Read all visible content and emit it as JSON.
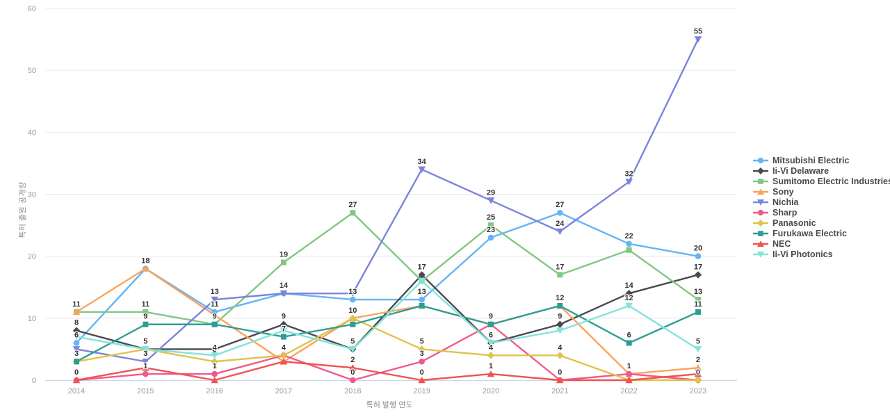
{
  "chart_data": {
    "type": "line",
    "title": "",
    "xlabel": "특허 발행 연도",
    "ylabel": "특허 출원 공개량",
    "x": [
      2014,
      2015,
      2016,
      2017,
      2018,
      2019,
      2020,
      2021,
      2022,
      2023
    ],
    "ylim": [
      0,
      60
    ],
    "yticks": [
      0,
      10,
      20,
      30,
      40,
      50,
      60
    ],
    "grid": true,
    "legend_position": "right",
    "axis_color": "#999999",
    "grid_color": "#e8e8e8",
    "baseline_color": "#ccd6eb",
    "label_color": "#333333",
    "series": [
      {
        "name": "Mitsubishi Electric",
        "color": "#64B5F6",
        "marker": "circle",
        "values": [
          6,
          18,
          11,
          14,
          13,
          13,
          23,
          27,
          22,
          20
        ],
        "labels": [
          "6",
          null,
          "11",
          null,
          "13",
          "13",
          "23",
          "27",
          "22",
          "20"
        ]
      },
      {
        "name": "Ii-Vi Delaware",
        "color": "#4A4A52",
        "marker": "diamond",
        "values": [
          8,
          5,
          5,
          9,
          5,
          17,
          6,
          9,
          14,
          17
        ],
        "labels": [
          "8",
          null,
          null,
          "9",
          "5",
          "17",
          "6",
          "9",
          "14",
          "17"
        ]
      },
      {
        "name": "Sumitomo Electric Industries",
        "color": "#81C784",
        "marker": "square",
        "values": [
          11,
          11,
          9,
          19,
          27,
          16,
          25,
          17,
          21,
          13
        ],
        "labels": [
          null,
          "11",
          null,
          "19",
          "27",
          null,
          "25",
          "17",
          null,
          "13"
        ]
      },
      {
        "name": "Sony",
        "color": "#FBA35B",
        "marker": "triangle-up",
        "values": [
          11,
          18,
          null,
          3,
          10,
          12,
          9,
          12,
          1,
          2
        ],
        "labels": [
          "11",
          "18",
          null,
          null,
          null,
          null,
          null,
          null,
          null,
          "2"
        ]
      },
      {
        "name": "Nichia",
        "color": "#7C83DC",
        "marker": "triangle-down",
        "values": [
          5,
          3,
          13,
          14,
          14,
          34,
          29,
          24,
          32,
          55
        ],
        "labels": [
          null,
          "3",
          "13",
          "14",
          null,
          "34",
          "29",
          "24",
          "32",
          "55"
        ]
      },
      {
        "name": "Sharp",
        "color": "#F0598E",
        "marker": "circle",
        "values": [
          0,
          1,
          1,
          4,
          0,
          3,
          9,
          0,
          1,
          0
        ],
        "labels": [
          "0",
          "1",
          "1",
          null,
          "0",
          "3",
          null,
          "0",
          "1",
          "0"
        ]
      },
      {
        "name": "Panasonic",
        "color": "#E0C34A",
        "marker": "diamond",
        "values": [
          3,
          5,
          3,
          4,
          10,
          5,
          4,
          4,
          0,
          0
        ],
        "labels": [
          "3",
          null,
          null,
          "4",
          "10",
          "5",
          "4",
          "4",
          null,
          null
        ]
      },
      {
        "name": "Furukawa Electric",
        "color": "#2D9E93",
        "marker": "square",
        "values": [
          3,
          9,
          9,
          7,
          9,
          12,
          9,
          12,
          6,
          11
        ],
        "labels": [
          null,
          "9",
          "9",
          "7",
          null,
          null,
          "9",
          "12",
          "6",
          "11"
        ]
      },
      {
        "name": "NEC",
        "color": "#EF5350",
        "marker": "triangle-up",
        "values": [
          0,
          2,
          0,
          3,
          2,
          0,
          1,
          0,
          0,
          1
        ],
        "labels": [
          null,
          null,
          null,
          null,
          "2",
          "0",
          "1",
          null,
          null,
          null
        ]
      },
      {
        "name": "Ii-Vi Photonics",
        "color": "#82E4DA",
        "marker": "triangle-down",
        "values": [
          7,
          5,
          4,
          8,
          5,
          16,
          6,
          8,
          12,
          5
        ],
        "labels": [
          null,
          "5",
          "4",
          null,
          null,
          null,
          null,
          null,
          "12",
          "5"
        ]
      }
    ]
  }
}
